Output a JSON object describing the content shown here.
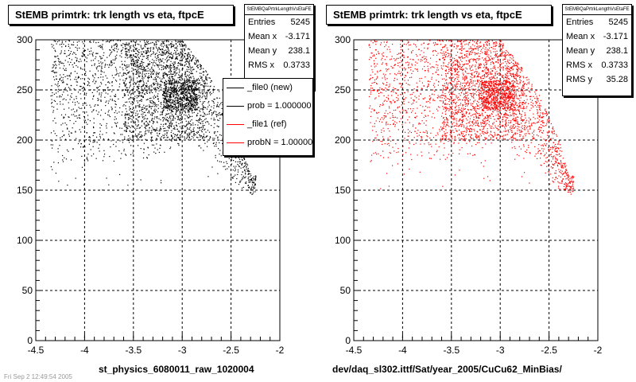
{
  "footer_text": "Fri Sep 2 12:49:54 2005",
  "chart_data": [
    {
      "type": "scatter",
      "title": "StEMB primtrk: trk length vs eta, ftpcE",
      "xlabel": "st_physics_6080011_raw_1020004",
      "ylabel": "",
      "xlim": [
        -4.5,
        -2
      ],
      "ylim": [
        0,
        300
      ],
      "x_ticks": [
        "-4.5",
        "-4",
        "-3.5",
        "-3",
        "-2.5",
        "-2"
      ],
      "y_ticks": [
        "0",
        "50",
        "100",
        "150",
        "200",
        "250",
        "300"
      ],
      "grid": true,
      "marker_color": "#000000",
      "stats": {
        "title": "StEMBQaPrtrkLengthVsEtaFE",
        "rows": [
          {
            "label": "Entries",
            "value": "5245"
          },
          {
            "label": "Mean x",
            "value": "-3.171"
          },
          {
            "label": "Mean y",
            "value": "238.1"
          },
          {
            "label": "RMS x",
            "value": "0.3733"
          }
        ]
      },
      "legend": {
        "placement": "right",
        "entries": [
          {
            "label": "_file0 (new)",
            "color": "#000000"
          },
          {
            "label": "prob = 1.000000",
            "color": "#000000"
          },
          {
            "label": "_file1 (ref)",
            "color": "#ff0000"
          },
          {
            "label": "probN = 1.000000",
            "color": "#ff0000"
          }
        ]
      },
      "density_model": {
        "eta_range": [
          -4.35,
          -2.25
        ],
        "upper_length": 300,
        "lower_envelope": [
          [
            -4.35,
            170
          ],
          [
            -4.0,
            175
          ],
          [
            -3.5,
            180
          ],
          [
            -3.2,
            185
          ],
          [
            -3.0,
            195
          ],
          [
            -2.8,
            190
          ],
          [
            -2.6,
            175
          ],
          [
            -2.45,
            155
          ],
          [
            -2.3,
            145
          ]
        ],
        "upper_envelope": [
          [
            -4.35,
            300
          ],
          [
            -3.0,
            300
          ],
          [
            -2.8,
            275
          ],
          [
            -2.6,
            245
          ],
          [
            -2.4,
            200
          ],
          [
            -2.3,
            165
          ]
        ],
        "dense_bands": [
          {
            "x_range": [
              -3.6,
              -2.75
            ],
            "y_range": [
              200,
              300
            ],
            "weight": 3
          },
          {
            "x_range": [
              -3.2,
              -2.85
            ],
            "y_range": [
              230,
              260
            ],
            "weight": 2
          }
        ],
        "point_count": 5245
      }
    },
    {
      "type": "scatter",
      "title": "StEMB primtrk: trk length vs eta, ftpcE",
      "xlabel": "dev/daq_sl302.ittf/Sat/year_2005/CuCu62_MinBias/",
      "ylabel": "",
      "xlim": [
        -4.5,
        -2
      ],
      "ylim": [
        0,
        300
      ],
      "x_ticks": [
        "-4.5",
        "-4",
        "-3.5",
        "-3",
        "-2.5",
        "-2"
      ],
      "y_ticks": [
        "0",
        "50",
        "100",
        "150",
        "200",
        "250",
        "300"
      ],
      "grid": true,
      "marker_color": "#ff0000",
      "stats": {
        "title": "StEMBQaPrtrkLengthVsEtaFE",
        "rows": [
          {
            "label": "Entries",
            "value": "5245"
          },
          {
            "label": "Mean x",
            "value": "-3.171"
          },
          {
            "label": "Mean y",
            "value": "238.1"
          },
          {
            "label": "RMS x",
            "value": "0.3733"
          },
          {
            "label": "RMS y",
            "value": "35.28"
          }
        ]
      },
      "density_model": {
        "eta_range": [
          -4.35,
          -2.25
        ],
        "upper_length": 300,
        "lower_envelope": [
          [
            -4.35,
            170
          ],
          [
            -4.0,
            175
          ],
          [
            -3.5,
            180
          ],
          [
            -3.2,
            185
          ],
          [
            -3.0,
            195
          ],
          [
            -2.8,
            190
          ],
          [
            -2.6,
            175
          ],
          [
            -2.45,
            155
          ],
          [
            -2.3,
            145
          ]
        ],
        "upper_envelope": [
          [
            -4.35,
            300
          ],
          [
            -3.0,
            300
          ],
          [
            -2.8,
            275
          ],
          [
            -2.6,
            245
          ],
          [
            -2.4,
            200
          ],
          [
            -2.3,
            165
          ]
        ],
        "dense_bands": [
          {
            "x_range": [
              -3.6,
              -2.75
            ],
            "y_range": [
              200,
              300
            ],
            "weight": 3
          },
          {
            "x_range": [
              -3.2,
              -2.85
            ],
            "y_range": [
              230,
              260
            ],
            "weight": 2
          }
        ],
        "point_count": 5245
      }
    }
  ]
}
